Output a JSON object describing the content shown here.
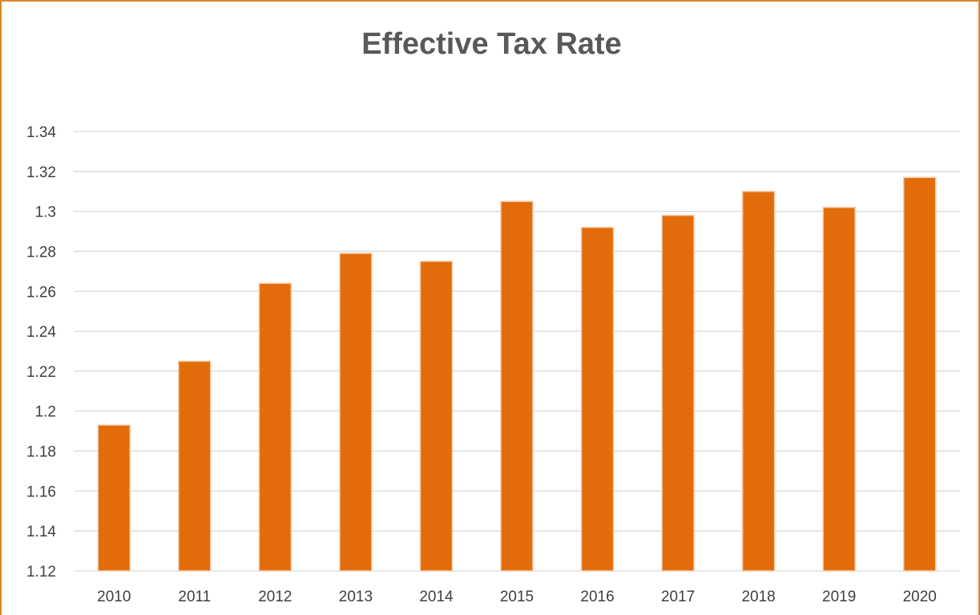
{
  "chart_data": {
    "type": "bar",
    "title": "Effective Tax Rate",
    "xlabel": "",
    "ylabel": "",
    "categories": [
      "2010",
      "2011",
      "2012",
      "2013",
      "2014",
      "2015",
      "2016",
      "2017",
      "2018",
      "2019",
      "2020"
    ],
    "values": [
      1.193,
      1.225,
      1.264,
      1.279,
      1.275,
      1.305,
      1.292,
      1.298,
      1.31,
      1.302,
      1.317
    ],
    "ylim": [
      1.12,
      1.34
    ],
    "yticks": [
      "1.12",
      "1.14",
      "1.16",
      "1.18",
      "1.2",
      "1.22",
      "1.24",
      "1.26",
      "1.28",
      "1.3",
      "1.32",
      "1.34"
    ],
    "grid": true,
    "legend": "none",
    "bar_color": "#e36c0a",
    "bar_edge_color": "#f8cbad",
    "grid_color": "#d9d9d9",
    "frame_color": "#d9862b"
  }
}
